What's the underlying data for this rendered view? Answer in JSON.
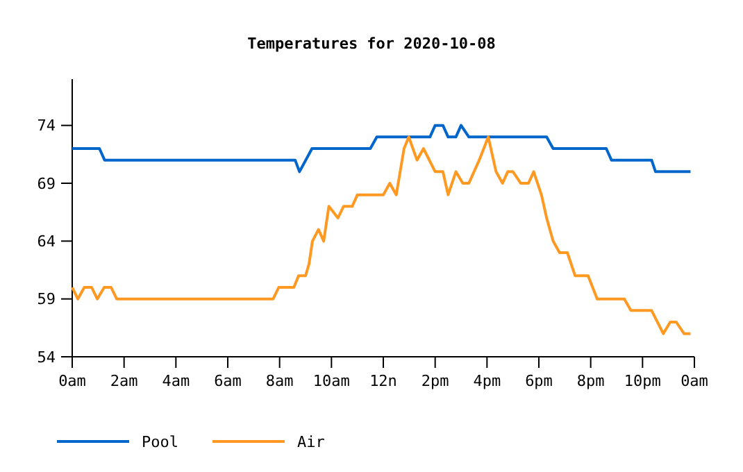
{
  "chart_data": {
    "type": "line",
    "title": "Temperatures for 2020-10-08",
    "xlim": [
      "2020-10-08T00:00",
      "2020-10-09T00:00"
    ],
    "xticks": [
      {
        "value": "2020-10-08T00:00",
        "label": "0am"
      },
      {
        "value": "2020-10-08T02:00",
        "label": "2am"
      },
      {
        "value": "2020-10-08T04:00",
        "label": "4am"
      },
      {
        "value": "2020-10-08T06:00",
        "label": "6am"
      },
      {
        "value": "2020-10-08T08:00",
        "label": "8am"
      },
      {
        "value": "2020-10-08T10:00",
        "label": "10am"
      },
      {
        "value": "2020-10-08T12:00",
        "label": "12n"
      },
      {
        "value": "2020-10-08T14:00",
        "label": "2pm"
      },
      {
        "value": "2020-10-08T16:00",
        "label": "4pm"
      },
      {
        "value": "2020-10-08T18:00",
        "label": "6pm"
      },
      {
        "value": "2020-10-08T20:00",
        "label": "8pm"
      },
      {
        "value": "2020-10-08T22:00",
        "label": "10pm"
      },
      {
        "value": "2020-10-09T00:00",
        "label": "0am"
      }
    ],
    "ylim": [
      54,
      78
    ],
    "yticks": [
      54,
      59,
      64,
      69,
      74
    ],
    "grid": false,
    "legend": "bottom",
    "marker": "none",
    "line_style": "solid",
    "series": [
      {
        "name": "Pool",
        "color": "#0066cc",
        "x": [
          "2020-10-08T00:00",
          "2020-10-08T01:03",
          "2020-10-08T01:15",
          "2020-10-08T08:36",
          "2020-10-08T08:46",
          "2020-10-08T09:15",
          "2020-10-08T11:30",
          "2020-10-08T11:45",
          "2020-10-08T13:48",
          "2020-10-08T14:00",
          "2020-10-08T14:18",
          "2020-10-08T14:30",
          "2020-10-08T14:48",
          "2020-10-08T15:00",
          "2020-10-08T15:18",
          "2020-10-08T18:18",
          "2020-10-08T18:33",
          "2020-10-08T20:36",
          "2020-10-08T20:48",
          "2020-10-08T22:21",
          "2020-10-08T22:30",
          "2020-10-08T23:51"
        ],
        "values": [
          72,
          72,
          71,
          71,
          70,
          72,
          72,
          73,
          73,
          74,
          74,
          73,
          73,
          74,
          73,
          73,
          72,
          72,
          71,
          71,
          70,
          70
        ]
      },
      {
        "name": "Air",
        "color": "#ff9922",
        "x": [
          "2020-10-08T00:00",
          "2020-10-08T00:13",
          "2020-10-08T00:28",
          "2020-10-08T00:45",
          "2020-10-08T00:58",
          "2020-10-08T01:14",
          "2020-10-08T01:30",
          "2020-10-08T01:43",
          "2020-10-08T07:45",
          "2020-10-08T07:58",
          "2020-10-08T08:33",
          "2020-10-08T08:44",
          "2020-10-08T09:00",
          "2020-10-08T09:08",
          "2020-10-08T09:16",
          "2020-10-08T09:30",
          "2020-10-08T09:42",
          "2020-10-08T09:54",
          "2020-10-08T10:15",
          "2020-10-08T10:28",
          "2020-10-08T10:48",
          "2020-10-08T11:00",
          "2020-10-08T12:00",
          "2020-10-08T12:15",
          "2020-10-08T12:30",
          "2020-10-08T12:48",
          "2020-10-08T12:59",
          "2020-10-08T13:18",
          "2020-10-08T13:33",
          "2020-10-08T14:00",
          "2020-10-08T14:18",
          "2020-10-08T14:30",
          "2020-10-08T14:48",
          "2020-10-08T15:04",
          "2020-10-08T15:18",
          "2020-10-08T15:42",
          "2020-10-08T16:03",
          "2020-10-08T16:21",
          "2020-10-08T16:36",
          "2020-10-08T16:48",
          "2020-10-08T17:00",
          "2020-10-08T17:18",
          "2020-10-08T17:36",
          "2020-10-08T17:48",
          "2020-10-08T18:06",
          "2020-10-08T18:18",
          "2020-10-08T18:33",
          "2020-10-08T18:48",
          "2020-10-08T19:06",
          "2020-10-08T19:24",
          "2020-10-08T19:54",
          "2020-10-08T20:15",
          "2020-10-08T21:18",
          "2020-10-08T21:33",
          "2020-10-08T22:21",
          "2020-10-08T22:48",
          "2020-10-08T23:04",
          "2020-10-08T23:18",
          "2020-10-08T23:36",
          "2020-10-08T23:51"
        ],
        "values": [
          60,
          59,
          60,
          60,
          59,
          60,
          60,
          59,
          59,
          60,
          60,
          61,
          61,
          62,
          64,
          65,
          64,
          67,
          66,
          67,
          67,
          68,
          68,
          69,
          68,
          72,
          73,
          71,
          72,
          70,
          70,
          68,
          70,
          69,
          69,
          71,
          73,
          70,
          69,
          70,
          70,
          69,
          69,
          70,
          68,
          66,
          64,
          63,
          63,
          61,
          61,
          59,
          59,
          58,
          58,
          56,
          57,
          57,
          56,
          56
        ]
      }
    ]
  }
}
